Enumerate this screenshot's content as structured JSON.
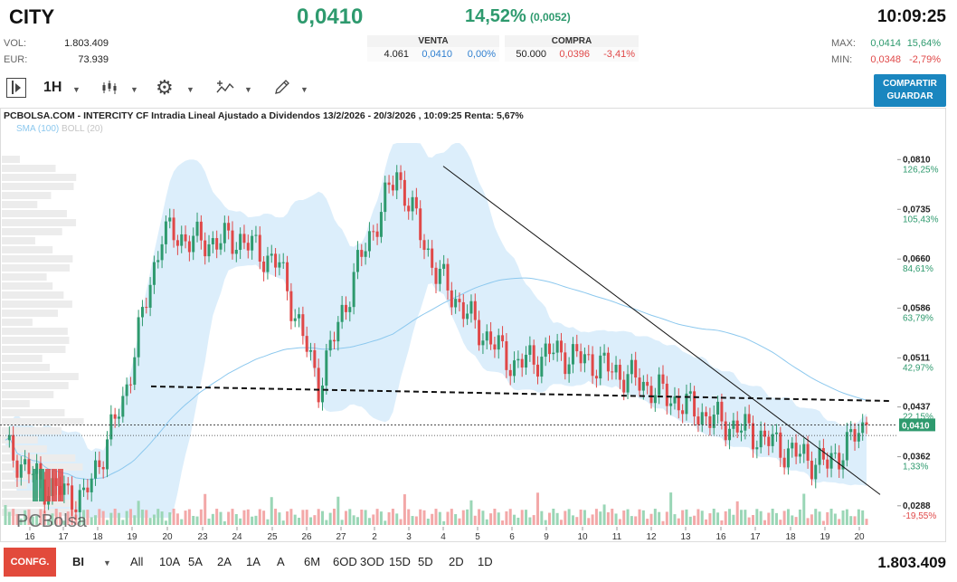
{
  "header": {
    "ticker": "CITY",
    "price": "0,0410",
    "change_pct": "14,52%",
    "change_abs": "(0,0052)",
    "time": "10:09:25",
    "vol_label": "VOL:",
    "vol_value": "1.803.409",
    "eur_label": "EUR:",
    "eur_value": "73.939",
    "max_label": "MAX:",
    "max_value": "0,0414",
    "max_pct": "15,64%",
    "min_label": "MIN:",
    "min_value": "0,0348",
    "min_pct": "-2,79%"
  },
  "quote": {
    "venta_label": "VENTA",
    "venta_qty": "4.061",
    "venta_price": "0,0410",
    "venta_pct": "0,00%",
    "compra_label": "COMPRA",
    "compra_qty": "50.000",
    "compra_price": "0,0396",
    "compra_pct": "-3,41%"
  },
  "toolbar": {
    "interval": "1H",
    "share_label": "COMPARTIR",
    "save_label": "GUARDAR"
  },
  "chart_data": {
    "type": "candlestick",
    "title": "PCBOLSA.COM - INTERCITY CF Intradia Lineal Ajustado a Dividendos 13/2/2026 - 20/3/2026 , 10:09:25 Renta: 5,67%",
    "legend": [
      "SMA (100)",
      "BOLL (20)"
    ],
    "watermark": "PCBolsa",
    "last_price_label": "0,0410",
    "y_ticks": [
      {
        "price": "0,0810",
        "pct": "126,25%",
        "value": 0.081
      },
      {
        "price": "0,0735",
        "pct": "105,43%",
        "value": 0.0735
      },
      {
        "price": "0,0660",
        "pct": "84,61%",
        "value": 0.066
      },
      {
        "price": "0,0586",
        "pct": "63,79%",
        "value": 0.0586
      },
      {
        "price": "0,0511",
        "pct": "42,97%",
        "value": 0.0511
      },
      {
        "price": "0,0437",
        "pct": "22,15%",
        "value": 0.0437
      },
      {
        "price": "0,0362",
        "pct": "1,33%",
        "value": 0.0362
      },
      {
        "price": "0,0288",
        "pct": "-19,55%",
        "value": 0.0288
      }
    ],
    "x_ticks": [
      "16",
      "17",
      "18",
      "19",
      "20",
      "23",
      "24",
      "25",
      "26",
      "27",
      "2",
      "3",
      "4",
      "5",
      "6",
      "9",
      "10",
      "11",
      "12",
      "13",
      "16",
      "17",
      "18",
      "19",
      "20"
    ],
    "key_points": [
      {
        "label": "16",
        "close": 0.0375
      },
      {
        "label": "18",
        "close": 0.0318
      },
      {
        "label": "19",
        "close": 0.0298
      },
      {
        "label": "20",
        "close": 0.0445
      },
      {
        "label": "23",
        "close": 0.07
      },
      {
        "label": "24",
        "close": 0.0685
      },
      {
        "label": "26",
        "close": 0.069
      },
      {
        "label": "27",
        "close": 0.065
      },
      {
        "label": "2",
        "close": 0.047
      },
      {
        "label": "3",
        "close": 0.065
      },
      {
        "label": "4",
        "close": 0.079
      },
      {
        "label": "5",
        "close": 0.064
      },
      {
        "label": "6",
        "close": 0.056
      },
      {
        "label": "9",
        "close": 0.05
      },
      {
        "label": "10",
        "close": 0.052
      },
      {
        "label": "11",
        "close": 0.0505
      },
      {
        "label": "12",
        "close": 0.048
      },
      {
        "label": "13",
        "close": 0.045
      },
      {
        "label": "16",
        "close": 0.042
      },
      {
        "label": "17",
        "close": 0.04
      },
      {
        "label": "18",
        "close": 0.037
      },
      {
        "label": "19",
        "close": 0.035
      },
      {
        "label": "20",
        "close": 0.041
      }
    ],
    "ylim": [
      0.027,
      0.0835
    ],
    "colors": {
      "up": "#2e9a6e",
      "down": "#e04848",
      "sma": "#8cc8ee",
      "boll": "#d6ebfa",
      "volume_up": "#9ad6b6",
      "volume_down": "#f3a8a8"
    }
  },
  "footer": {
    "config_label": "CONFG.",
    "mode": "BI",
    "periods": [
      "All",
      "10A",
      "5A",
      "2A",
      "1A",
      "A",
      "6M",
      "6OD",
      "3OD",
      "15D",
      "5D",
      "2D",
      "1D"
    ],
    "volume": "1.803.409"
  }
}
